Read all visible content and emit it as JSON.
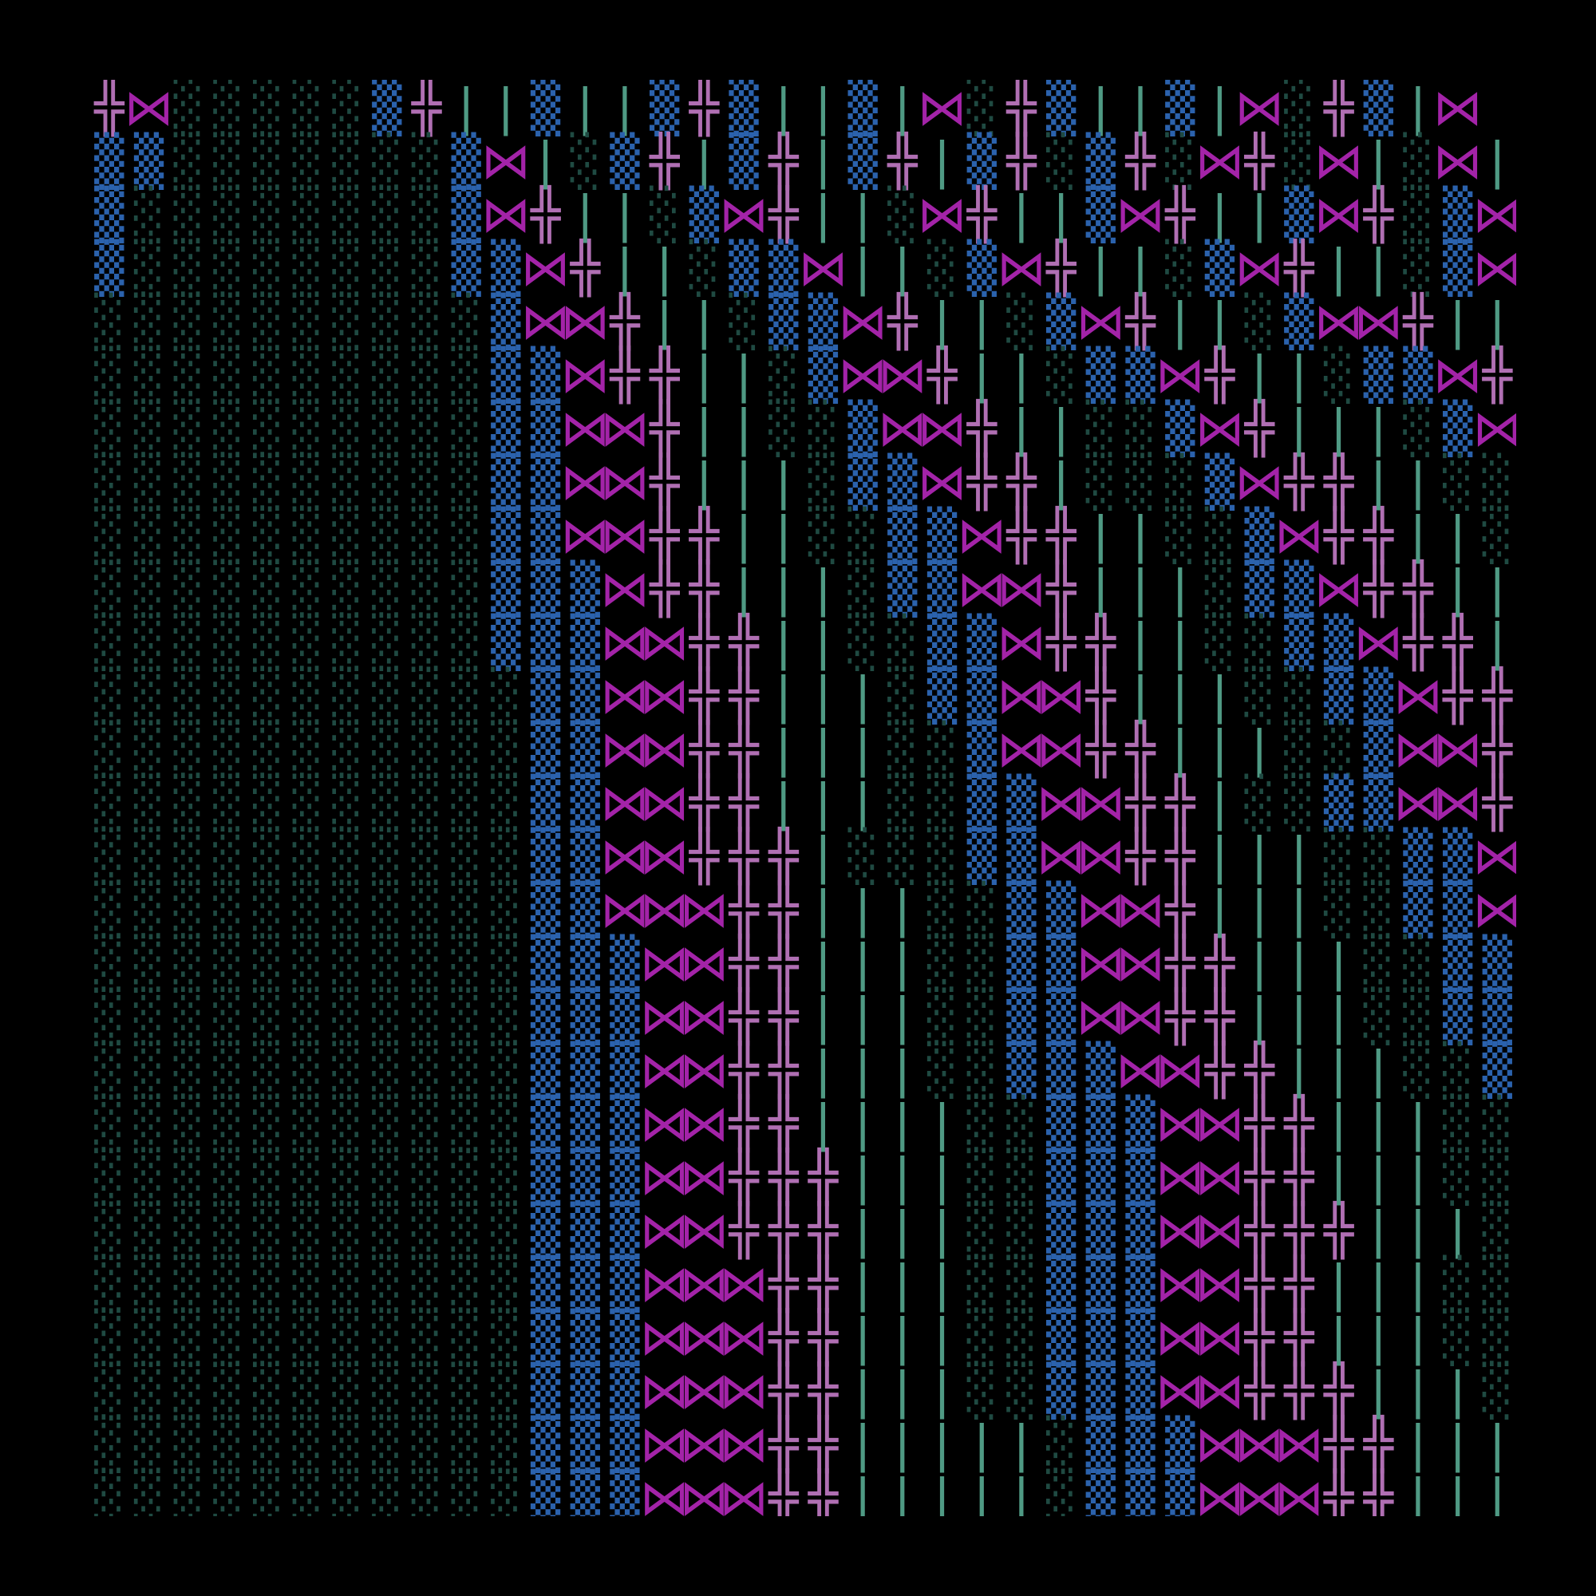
{
  "rows": [
    "╬⋈░░░░░▒╬||▒||▒╬▒||▒|⋈░╬▒||▒|⋈░╬▒|⋈",
    "▒▒░░░░░░░▒⋈|░▒╬|▒╬|▒╬|▒╬░▒╬░⋈╬░⋈|░⋈|░⋈",
    "▒░░░░░░░░▒⋈╬||░▒⋈╬||░⋈╬||▒⋈╬||▒⋈╬░▒⋈|░▒⋈|",
    "▒░░░░░░░░▒▒⋈╬||░▒▒⋈||░▒⋈╬||░▒⋈╬||░▒⋈╬||▒⋈╬|",
    "░░░░░░░░░░▒⋈⋈╬||░▒▒⋈╬||░▒⋈╬||░▒⋈⋈╬||░▒⋈╬||░",
    "░░░░░░░░░░▒▒⋈╬╬||░▒⋈⋈╬||░▒▒⋈╬||░▒▒⋈╬||░▒▒⋈╬",
    "░░░░░░░░░░▒▒⋈⋈╬||░░▒⋈⋈╬||░░▒⋈╬|||░▒⋈⋈╬||░░",
    "░░░░░░░░░░▒▒⋈⋈╬|||░▒▒⋈╬╬|░░░▒⋈╬╬||░░▒⋈╬╬||",
    "░░░░░░░░░░▒▒⋈⋈╬╬||░░▒▒⋈╬╬||░░▒⋈╬╬||░░▒⋈⋈╬",
    "░░░░░░░░░░▒▒▒⋈╬╬|||░▒▒⋈⋈╬|||░▒▒⋈╬╬|||░▒▒⋈",
    "░░░░░░░░░░▒▒▒⋈⋈╬╬||░░▒▒⋈╬╬||░░▒▒⋈╬╬|||░▒▒⋈",
    "░░░░░░░░░░░▒▒⋈⋈╬╬|||░▒▒⋈⋈╬|||░░▒▒⋈╬╬|||░▒",
    "░░░░░░░░░░░▒▒⋈⋈╬╬|||░░▒⋈⋈╬╬|||░░▒⋈⋈╬╬||░▒",
    "░░░░░░░░░░░▒▒⋈⋈╬╬|||░░▒▒⋈⋈╬╬|░░▒▒⋈⋈╬╬|||",
    "░░░░░░░░░░░▒▒⋈⋈╬╬╬|░░░▒▒⋈⋈╬╬|||░░▒▒⋈╬╬|||",
    "░░░░░░░░░░░▒▒⋈⋈⋈╬╬|||░░▒▒⋈⋈╬|||░░▒▒⋈⋈╬╬||",
    "░░░░░░░░░░░▒▒▒⋈⋈╬╬|||░░▒▒⋈⋈╬╬|||░░▒▒⋈⋈╬╬|",
    "░░░░░░░░░░░▒▒▒⋈⋈╬╬|||░░▒▒⋈⋈╬╬|||░░▒▒⋈⋈╬╬|",
    "░░░░░░░░░░░▒▒▒⋈⋈╬╬|||░░▒▒▒⋈⋈╬╬|||░░▒▒⋈⋈╬",
    "░░░░░░░░░░░▒▒▒⋈⋈╬╬||||░░▒▒▒⋈⋈╬╬|||░░▒▒⋈⋈╬",
    "░░░░░░░░░░░▒▒▒⋈⋈╬╬╬|||░░▒▒▒⋈⋈╬╬|||░░▒▒▒⋈⋈",
    "░░░░░░░░░░░▒▒▒⋈⋈╬╬╬|||░░▒▒▒⋈⋈╬╬╬|||░░▒▒⋈⋈",
    "░░░░░░░░░░░▒▒▒⋈⋈⋈╬╬|||░░▒▒▒⋈⋈╬╬|||░░▒▒▒⋈",
    "░░░░░░░░░░░▒▒▒⋈⋈⋈╬╬|||░░▒▒▒⋈⋈╬╬|||░░▒▒▒⋈",
    "░░░░░░░░░░░▒▒▒⋈⋈⋈╬╬|||░░▒▒▒⋈⋈╬╬╬|||░░▒▒▒⋈",
    "░░░░░░░░░░░▒▒▒⋈⋈⋈╬╬|||||░▒▒▒⋈⋈⋈╬╬|||░░▒▒⋈",
    "░░░░░░░░░░░▒▒▒⋈⋈⋈╬╬|||||░▒▒▒⋈⋈⋈╬╬|||░░▒▒⋈"
  ],
  "palette": {
    "░": "#1f4a42",
    "▒": "#2b62ad",
    "⋈": "#a323a8",
    "╬": "#b06fb3",
    "|": "#4f9a84"
  }
}
